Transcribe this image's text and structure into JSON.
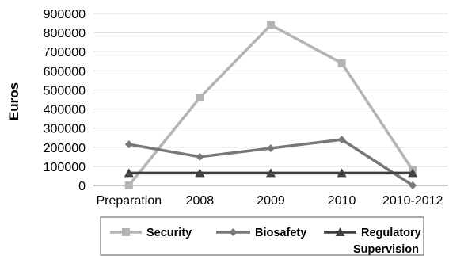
{
  "chart_data": {
    "type": "line",
    "title": "",
    "xlabel": "",
    "ylabel": "Euros",
    "categories": [
      "Preparation",
      "2008",
      "2009",
      "2010",
      "2010-2012"
    ],
    "ylim": [
      0,
      900000
    ],
    "yticks": [
      0,
      100000,
      200000,
      300000,
      400000,
      500000,
      600000,
      700000,
      800000,
      900000
    ],
    "ytick_labels": [
      "0",
      "100000",
      "200000",
      "300000",
      "400000",
      "500000",
      "600000",
      "700000",
      "800000",
      "900000"
    ],
    "grid": "horizontal",
    "legend_position": "bottom",
    "series": [
      {
        "name": "Security",
        "values": [
          0,
          460000,
          840000,
          640000,
          80000
        ],
        "color": "#b4b4b4",
        "marker": "square"
      },
      {
        "name": "Biosafety",
        "values": [
          215000,
          150000,
          195000,
          240000,
          0
        ],
        "color": "#787878",
        "marker": "diamond"
      },
      {
        "name": "Regulatory Supervision",
        "values": [
          65000,
          65000,
          65000,
          65000,
          65000
        ],
        "color": "#404040",
        "marker": "triangle"
      }
    ]
  }
}
